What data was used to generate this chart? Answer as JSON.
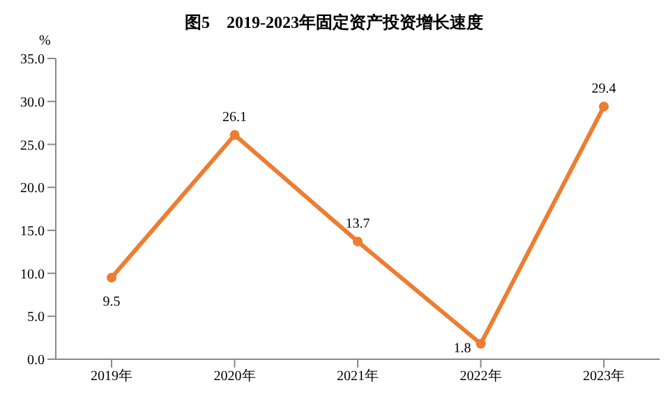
{
  "chart_data": {
    "type": "line",
    "title": "图5　2019-2023年固定资产投资增长速度",
    "ylabel": "%",
    "categories": [
      "2019年",
      "2020年",
      "2021年",
      "2022年",
      "2023年"
    ],
    "series": [
      {
        "color": "#ed7d31",
        "values": [
          9.5,
          26.1,
          13.7,
          1.8,
          29.4
        ]
      }
    ],
    "ylim": [
      0,
      35
    ],
    "yticks": [
      {
        "value": 0,
        "label": "0.0"
      },
      {
        "value": 5,
        "label": "5.0"
      },
      {
        "value": 10,
        "label": "10.0"
      },
      {
        "value": 15,
        "label": "15.0"
      },
      {
        "value": 20,
        "label": "20.0"
      },
      {
        "value": 25,
        "label": "25.0"
      },
      {
        "value": 30,
        "label": "30.0"
      },
      {
        "value": 35,
        "label": "35.0"
      }
    ],
    "grid": false,
    "legend": false,
    "marker": "circle",
    "line_style": "solid",
    "data_labels": true
  }
}
